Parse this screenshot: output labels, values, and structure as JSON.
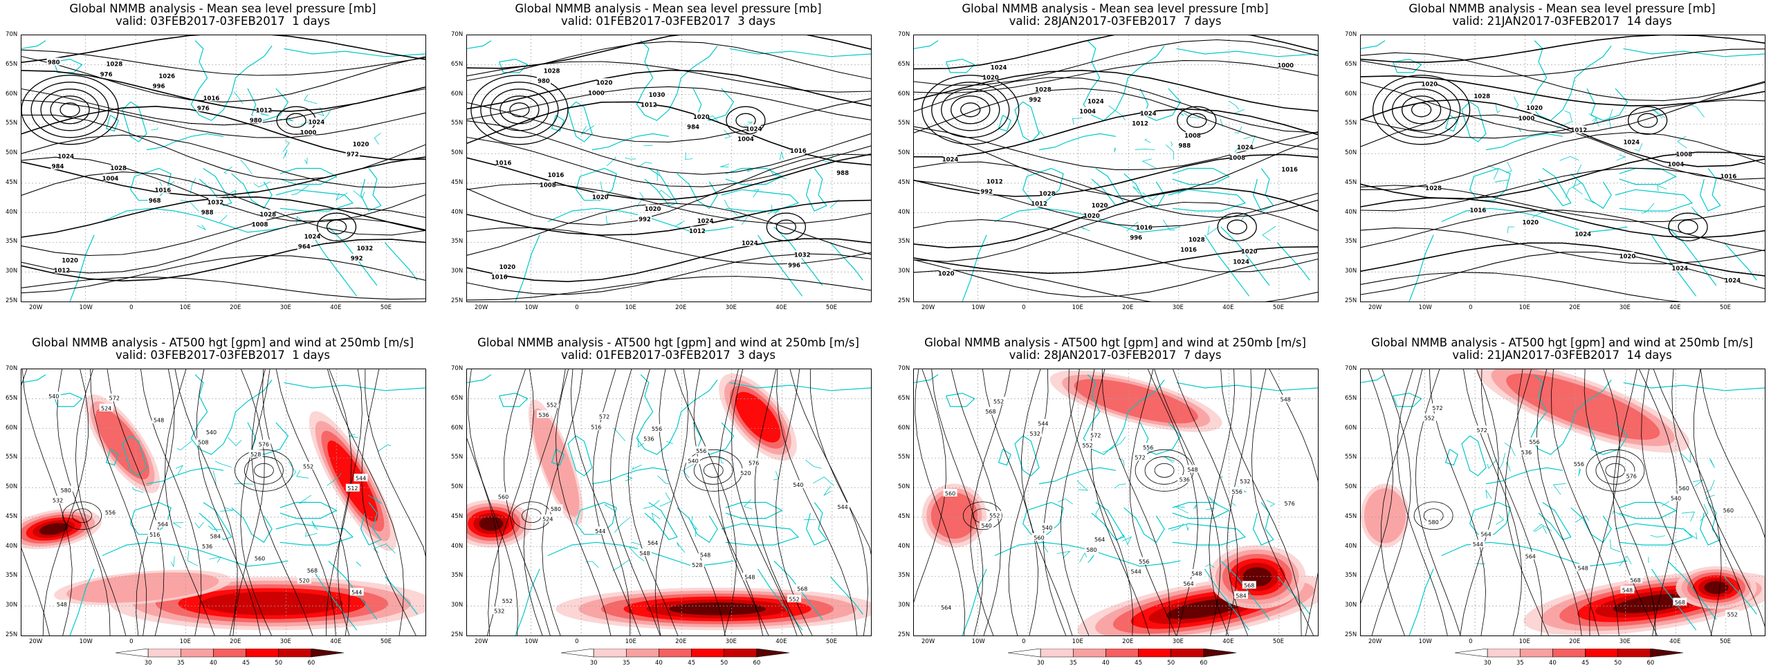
{
  "axes": {
    "lon_labels": [
      "20W",
      "10W",
      "0",
      "10E",
      "20E",
      "30E",
      "40E",
      "50E"
    ],
    "lat_labels": [
      "70N",
      "65N",
      "60N",
      "55N",
      "50N",
      "45N",
      "40N",
      "35N",
      "30N",
      "25N"
    ]
  },
  "colorbar": {
    "ticks": [
      "30",
      "35",
      "40",
      "45",
      "50",
      "60"
    ],
    "colors": [
      "#ffffff",
      "#fcd0d0",
      "#f9a0a0",
      "#f56060",
      "#ff0000",
      "#c80000",
      "#5a0000"
    ]
  },
  "colors": {
    "coast": "#00c8c8",
    "contour": "#000000",
    "grid": "#a0a0a0"
  },
  "panels_top": [
    {
      "title1": "Global NMMB analysis - Mean sea level pressure [mb]",
      "title2": "valid: 03FEB2017-03FEB2017  1 days",
      "labels": [
        "980",
        "976",
        "972",
        "968",
        "964",
        "976",
        "980",
        "984",
        "988",
        "992",
        "996",
        "1000",
        "1004",
        "1008",
        "1012",
        "1016",
        "1020",
        "1016",
        "1024",
        "1028",
        "1012",
        "1024",
        "1032",
        "1032",
        "1026",
        "1024",
        "1028",
        "1028",
        "1020"
      ]
    },
    {
      "title1": "Global NMMB analysis - Mean sea level pressure [mb]",
      "title2": "valid: 01FEB2017-03FEB2017  3 days",
      "labels": [
        "980",
        "984",
        "988",
        "992",
        "996",
        "1000",
        "1004",
        "1008",
        "1012",
        "1016",
        "1012",
        "1016",
        "1020",
        "1024",
        "1028",
        "1020",
        "1016",
        "1020",
        "1032",
        "1020",
        "1024",
        "1016",
        "1024",
        "1020",
        "1030"
      ]
    },
    {
      "title1": "Global NMMB analysis - Mean sea level pressure [mb]",
      "title2": "valid: 28JAN2017-03FEB2017  7 days",
      "labels": [
        "992",
        "988",
        "992",
        "996",
        "1000",
        "1004",
        "1008",
        "1012",
        "1016",
        "1020",
        "1012",
        "1016",
        "1020",
        "1024",
        "1028",
        "1008",
        "1012",
        "1016",
        "1020",
        "1024",
        "1024",
        "1028",
        "1028",
        "1024",
        "1024",
        "1024",
        "1020",
        "1020"
      ]
    },
    {
      "title1": "Global NMMB analysis - Mean sea level pressure [mb]",
      "title2": "valid: 21JAN2017-03FEB2017  14 days",
      "labels": [
        "1000",
        "1004",
        "1016",
        "1020",
        "1020",
        "1012",
        "1016",
        "1020",
        "1024",
        "1028",
        "1024",
        "1028",
        "1024",
        "1024",
        "1020",
        "1008"
      ]
    }
  ],
  "panels_bottom": [
    {
      "title1": "Global NMMB analysis - AT500 hgt [gpm] and wind at 250mb [m/s]",
      "title2": "valid: 03FEB2017-03FEB2017  1 days",
      "labels": [
        "540",
        "508",
        "512",
        "516",
        "520",
        "524",
        "528",
        "532",
        "536",
        "544",
        "548",
        "552",
        "556",
        "560",
        "548",
        "540",
        "544",
        "564",
        "568",
        "572",
        "576",
        "580",
        "584"
      ]
    },
    {
      "title1": "Global NMMB analysis - AT500 hgt [gpm] and wind at 250mb [m/s]",
      "title2": "valid: 01FEB2017-03FEB2017  3 days",
      "labels": [
        "536",
        "540",
        "544",
        "548",
        "552",
        "516",
        "520",
        "524",
        "528",
        "532",
        "536",
        "540",
        "544",
        "548",
        "552",
        "556",
        "560",
        "564",
        "568",
        "572",
        "576",
        "580",
        "548",
        "552",
        "556"
      ]
    },
    {
      "title1": "Global NMMB analysis - AT500 hgt [gpm] and wind at 250mb [m/s]",
      "title2": "valid: 28JAN2017-03FEB2017  7 days",
      "labels": [
        "532",
        "536",
        "540",
        "544",
        "548",
        "552",
        "556",
        "560",
        "564",
        "568",
        "572",
        "576",
        "580",
        "584",
        "544",
        "548",
        "552",
        "556",
        "564",
        "572",
        "532",
        "540",
        "548",
        "552",
        "556",
        "560",
        "564",
        "568"
      ]
    },
    {
      "title1": "Global NMMB analysis - AT500 hgt [gpm] and wind at 250mb [m/s]",
      "title2": "valid: 21JAN2017-03FEB2017  14 days",
      "labels": [
        "536",
        "540",
        "544",
        "548",
        "552",
        "556",
        "560",
        "564",
        "568",
        "572",
        "576",
        "580",
        "548",
        "552",
        "556",
        "560",
        "564",
        "568",
        "572"
      ]
    }
  ]
}
